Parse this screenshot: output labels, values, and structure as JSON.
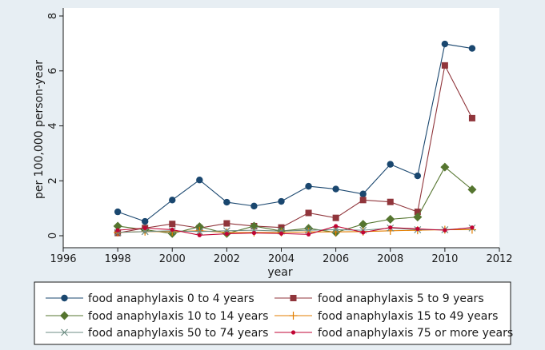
{
  "chart_data": {
    "type": "line",
    "xlabel": "year",
    "ylabel": "per 100,000 person-year",
    "xlim": [
      1996,
      2012
    ],
    "ylim": [
      0,
      8
    ],
    "xticks": [
      1996,
      1998,
      2000,
      2002,
      2004,
      2006,
      2008,
      2010,
      2012
    ],
    "yticks": [
      0,
      2,
      4,
      6,
      8
    ],
    "grid": false,
    "legend_position": "bottom",
    "x": [
      1998,
      1999,
      2000,
      2001,
      2002,
      2003,
      2004,
      2005,
      2006,
      2007,
      2008,
      2009,
      2010,
      2011
    ],
    "series": [
      {
        "name": "food anaphylaxis 0 to 4 years",
        "color": "#1a476f",
        "marker": "circle",
        "values": [
          0.87,
          0.52,
          1.3,
          2.03,
          1.22,
          1.08,
          1.25,
          1.8,
          1.7,
          1.52,
          2.6,
          2.18,
          6.98,
          6.82
        ]
      },
      {
        "name": "food anaphylaxis 5 to 9 years",
        "color": "#90353b",
        "marker": "square",
        "values": [
          0.1,
          0.28,
          0.43,
          0.28,
          0.45,
          0.35,
          0.3,
          0.83,
          0.65,
          1.3,
          1.23,
          0.87,
          6.2,
          4.28
        ]
      },
      {
        "name": "food anaphylaxis 10 to 14 years",
        "color": "#55752f",
        "marker": "diamond",
        "values": [
          0.35,
          0.22,
          0.08,
          0.33,
          0.08,
          0.35,
          0.17,
          0.27,
          0.12,
          0.42,
          0.6,
          0.68,
          2.5,
          1.68
        ]
      },
      {
        "name": "food anaphylaxis 15 to 49 years",
        "color": "#e37e00",
        "marker": "plus",
        "values": [
          0.12,
          0.15,
          0.15,
          0.18,
          0.12,
          0.12,
          0.12,
          0.14,
          0.14,
          0.15,
          0.18,
          0.2,
          0.22,
          0.22
        ]
      },
      {
        "name": "food anaphylaxis 50 to 74 years",
        "color": "#6e8e84",
        "marker": "x",
        "values": [
          0.12,
          0.15,
          0.18,
          0.15,
          0.18,
          0.2,
          0.17,
          0.2,
          0.22,
          0.2,
          0.28,
          0.22,
          0.22,
          0.28
        ]
      },
      {
        "name": "food anaphylaxis 75 or more years",
        "color": "#c10534",
        "marker": "dot",
        "values": [
          0.2,
          0.28,
          0.22,
          0.02,
          0.07,
          0.1,
          0.08,
          0.05,
          0.35,
          0.12,
          0.3,
          0.25,
          0.2,
          0.3
        ]
      }
    ]
  }
}
